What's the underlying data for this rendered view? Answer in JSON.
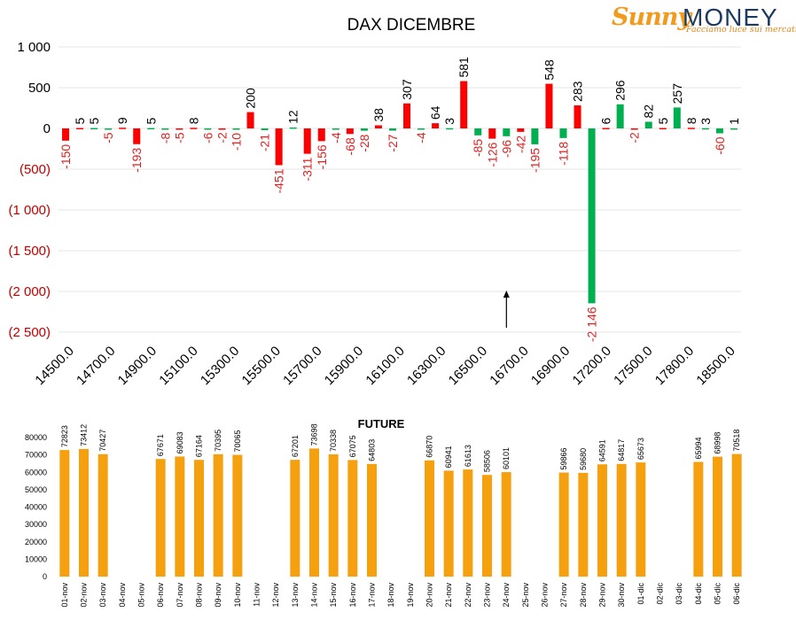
{
  "logo": {
    "brand_left": "Sunny",
    "brand_right": "MONEY",
    "tagline": "Facciamo luce sui mercati"
  },
  "colors": {
    "positive": "#ff0000",
    "negative": "#00b050",
    "future": "#f5a00f",
    "neg_label": "#e02020"
  },
  "chart_data": [
    {
      "type": "bar",
      "title": "DAX DICEMBRE",
      "ylim": [
        -2500,
        1000
      ],
      "yticks": [
        {
          "value": 1000,
          "label": "1 000"
        },
        {
          "value": 500,
          "label": "500"
        },
        {
          "value": 0,
          "label": "0"
        },
        {
          "value": -500,
          "label": "(500)"
        },
        {
          "value": -1000,
          "label": "(1 000)"
        },
        {
          "value": -1500,
          "label": "(1 500)"
        },
        {
          "value": -2000,
          "label": "(2 000)"
        },
        {
          "value": -2500,
          "label": "(2 500)"
        }
      ],
      "x_tick_labels": [
        "14500.0",
        "14700.0",
        "14900.0",
        "15100.0",
        "15300.0",
        "15500.0",
        "15700.0",
        "15900.0",
        "16100.0",
        "16300.0",
        "16500.0",
        "16700.0",
        "16900.0",
        "17200.0",
        "17500.0",
        "17800.0",
        "18500.0"
      ],
      "arrow": "up",
      "bars": [
        {
          "value": -150,
          "label": "-150",
          "color": "red"
        },
        {
          "value": 5,
          "label": "5",
          "color": "red"
        },
        {
          "value": 5,
          "label": "5",
          "color": "green"
        },
        {
          "value": -5,
          "label": "-5",
          "color": "green"
        },
        {
          "value": 9,
          "label": "9",
          "color": "red"
        },
        {
          "value": -193,
          "label": "-193",
          "color": "red"
        },
        {
          "value": 5,
          "label": "5",
          "color": "green"
        },
        {
          "value": -8,
          "label": "-8",
          "color": "green"
        },
        {
          "value": -5,
          "label": "-5",
          "color": "red"
        },
        {
          "value": 8,
          "label": "8",
          "color": "red"
        },
        {
          "value": -6,
          "label": "-6",
          "color": "green"
        },
        {
          "value": -2,
          "label": "-2",
          "color": "red"
        },
        {
          "value": -10,
          "label": "-10",
          "color": "green"
        },
        {
          "value": 200,
          "label": "200",
          "color": "red"
        },
        {
          "value": -21,
          "label": "-21",
          "color": "green"
        },
        {
          "value": -451,
          "label": "-451",
          "color": "red"
        },
        {
          "value": 12,
          "label": "12",
          "color": "green"
        },
        {
          "value": -311,
          "label": "-311",
          "color": "red"
        },
        {
          "value": -156,
          "label": "-156",
          "color": "red"
        },
        {
          "value": -4,
          "label": "-4",
          "color": "green"
        },
        {
          "value": -68,
          "label": "-68",
          "color": "red"
        },
        {
          "value": -28,
          "label": "-28",
          "color": "green"
        },
        {
          "value": 38,
          "label": "38",
          "color": "red"
        },
        {
          "value": -27,
          "label": "-27",
          "color": "green"
        },
        {
          "value": 307,
          "label": "307",
          "color": "red"
        },
        {
          "value": -4,
          "label": "-4",
          "color": "green"
        },
        {
          "value": 64,
          "label": "64",
          "color": "red"
        },
        {
          "value": 3,
          "label": "3",
          "color": "green"
        },
        {
          "value": 581,
          "label": "581",
          "color": "red"
        },
        {
          "value": -85,
          "label": "-85",
          "color": "green"
        },
        {
          "value": -126,
          "label": "-126",
          "color": "red"
        },
        {
          "value": -96,
          "label": "-96",
          "color": "green"
        },
        {
          "value": -42,
          "label": "-42",
          "color": "red"
        },
        {
          "value": -195,
          "label": "-195",
          "color": "green"
        },
        {
          "value": 548,
          "label": "548",
          "color": "red"
        },
        {
          "value": -118,
          "label": "-118",
          "color": "green"
        },
        {
          "value": 283,
          "label": "283",
          "color": "red"
        },
        {
          "value": -2146,
          "label": "-2 146",
          "color": "green"
        },
        {
          "value": 6,
          "label": "6",
          "color": "red"
        },
        {
          "value": 296,
          "label": "296",
          "color": "green"
        },
        {
          "value": -2,
          "label": "-2",
          "color": "red"
        },
        {
          "value": 82,
          "label": "82",
          "color": "green"
        },
        {
          "value": 5,
          "label": "5",
          "color": "red"
        },
        {
          "value": 257,
          "label": "257",
          "color": "green"
        },
        {
          "value": 8,
          "label": "8",
          "color": "red"
        },
        {
          "value": 3,
          "label": "3",
          "color": "green"
        },
        {
          "value": -60,
          "label": "-60",
          "color": "green"
        },
        {
          "value": 1,
          "label": "1",
          "color": "green"
        }
      ]
    },
    {
      "type": "bar",
      "title": "FUTURE",
      "ylim": [
        0,
        80000
      ],
      "yticks": [
        0,
        10000,
        20000,
        30000,
        40000,
        50000,
        60000,
        70000,
        80000
      ],
      "categories": [
        "01-nov",
        "02-nov",
        "03-nov",
        "04-nov",
        "05-nov",
        "06-nov",
        "07-nov",
        "08-nov",
        "09-nov",
        "10-nov",
        "11-nov",
        "12-nov",
        "13-nov",
        "14-nov",
        "15-nov",
        "16-nov",
        "17-nov",
        "18-nov",
        "19-nov",
        "20-nov",
        "21-nov",
        "22-nov",
        "23-nov",
        "24-nov",
        "25-nov",
        "26-nov",
        "27-nov",
        "28-nov",
        "29-nov",
        "30-nov",
        "01-dic",
        "02-dic",
        "03-dic",
        "04-dic",
        "05-dic",
        "06-dic"
      ],
      "values": [
        72823,
        73412,
        70427,
        null,
        null,
        67671,
        69083,
        67164,
        70395,
        70065,
        null,
        null,
        67201,
        73698,
        70338,
        67075,
        64803,
        null,
        null,
        66870,
        60941,
        61613,
        58506,
        60101,
        null,
        null,
        59866,
        59680,
        64591,
        64817,
        65673,
        null,
        null,
        65994,
        68998,
        70518
      ]
    }
  ]
}
